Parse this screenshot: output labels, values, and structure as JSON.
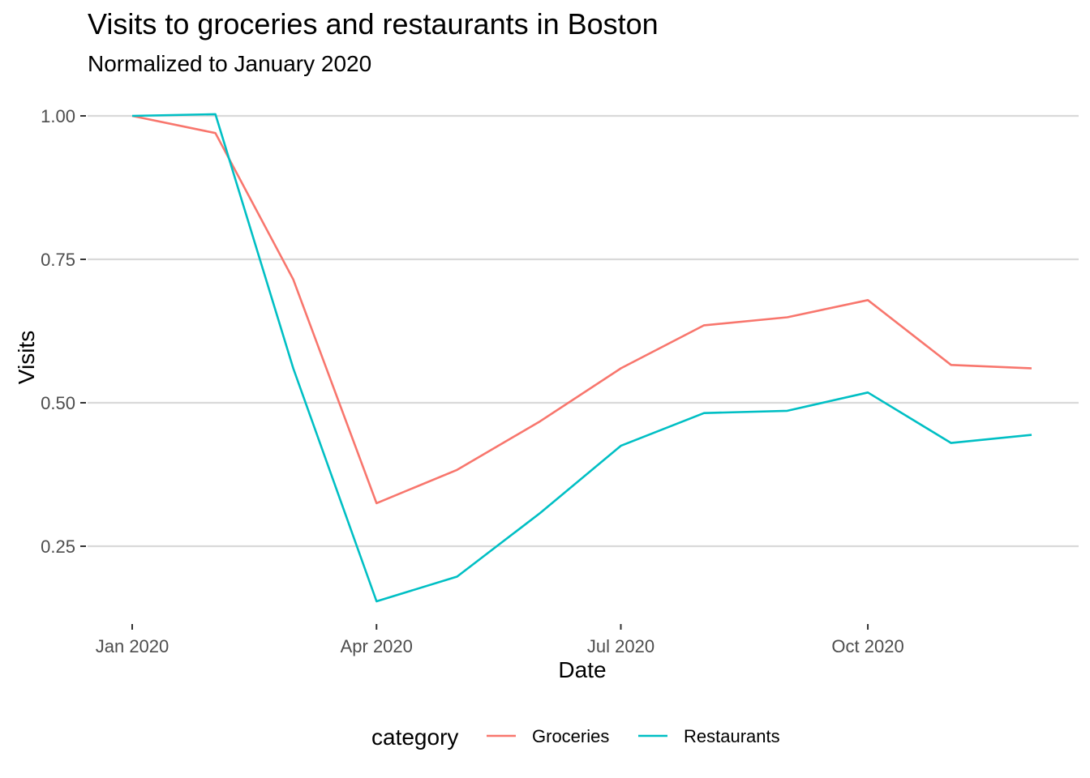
{
  "chart_data": {
    "type": "line",
    "title": "Visits to groceries and restaurants in Boston",
    "subtitle": "Normalized to January 2020",
    "xlabel": "Date",
    "ylabel": "Visits",
    "x": [
      "2020-01-01",
      "2020-02-01",
      "2020-03-01",
      "2020-04-01",
      "2020-05-01",
      "2020-06-01",
      "2020-07-01",
      "2020-08-01",
      "2020-09-01",
      "2020-10-01",
      "2020-11-01",
      "2020-12-01"
    ],
    "x_ticks": [
      {
        "date": "2020-01-01",
        "label": "Jan 2020"
      },
      {
        "date": "2020-04-01",
        "label": "Apr 2020"
      },
      {
        "date": "2020-07-01",
        "label": "Jul 2020"
      },
      {
        "date": "2020-10-01",
        "label": "Oct 2020"
      }
    ],
    "y_ticks": [
      {
        "value": 0.25,
        "label": "0.25"
      },
      {
        "value": 0.5,
        "label": "0.50"
      },
      {
        "value": 0.75,
        "label": "0.75"
      },
      {
        "value": 1.0,
        "label": "1.00"
      }
    ],
    "ylim": [
      0.125,
      1.035
    ],
    "grid": true,
    "legend_position": "bottom",
    "legend_title": "category",
    "series": [
      {
        "name": "Groceries",
        "color": "#F8766D",
        "values": [
          1.0,
          0.97,
          0.715,
          0.325,
          0.383,
          0.468,
          0.56,
          0.635,
          0.649,
          0.679,
          0.566,
          0.56
        ]
      },
      {
        "name": "Restaurants",
        "color": "#00BFC4",
        "values": [
          1.0,
          1.003,
          0.56,
          0.154,
          0.197,
          0.308,
          0.425,
          0.482,
          0.486,
          0.518,
          0.43,
          0.444
        ]
      }
    ]
  }
}
